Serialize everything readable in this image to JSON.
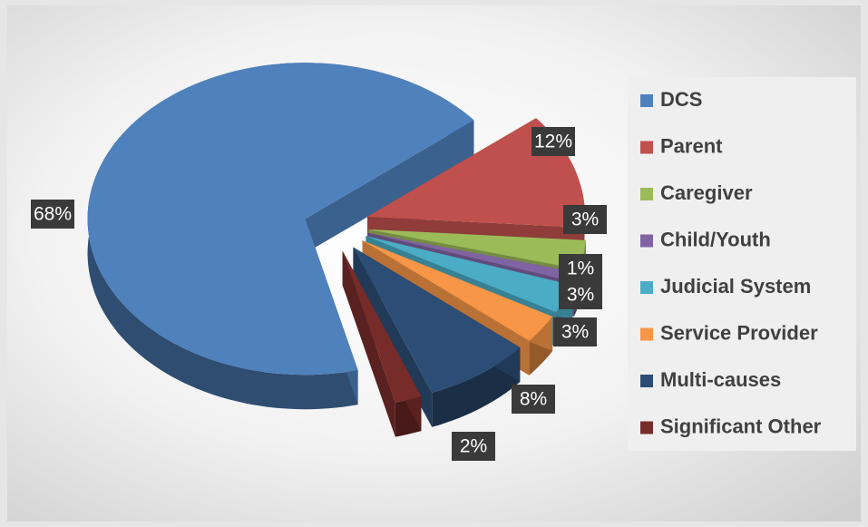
{
  "chart_data": {
    "type": "pie",
    "categories": [
      "DCS",
      "Parent",
      "Caregiver",
      "Child/Youth",
      "Judicial System",
      "Service Provider",
      "Multi-causes",
      "Significant Other"
    ],
    "values": [
      68,
      12,
      3,
      1,
      3,
      3,
      8,
      2
    ],
    "value_labels": [
      "68%",
      "12%",
      "3%",
      "1%",
      "3%",
      "3%",
      "8%",
      "2%"
    ],
    "colors": [
      "#4f81bd",
      "#c0504d",
      "#9bbb59",
      "#8064a2",
      "#4bacc6",
      "#f79646",
      "#2c4d75",
      "#772c2a"
    ],
    "legend": "right"
  }
}
